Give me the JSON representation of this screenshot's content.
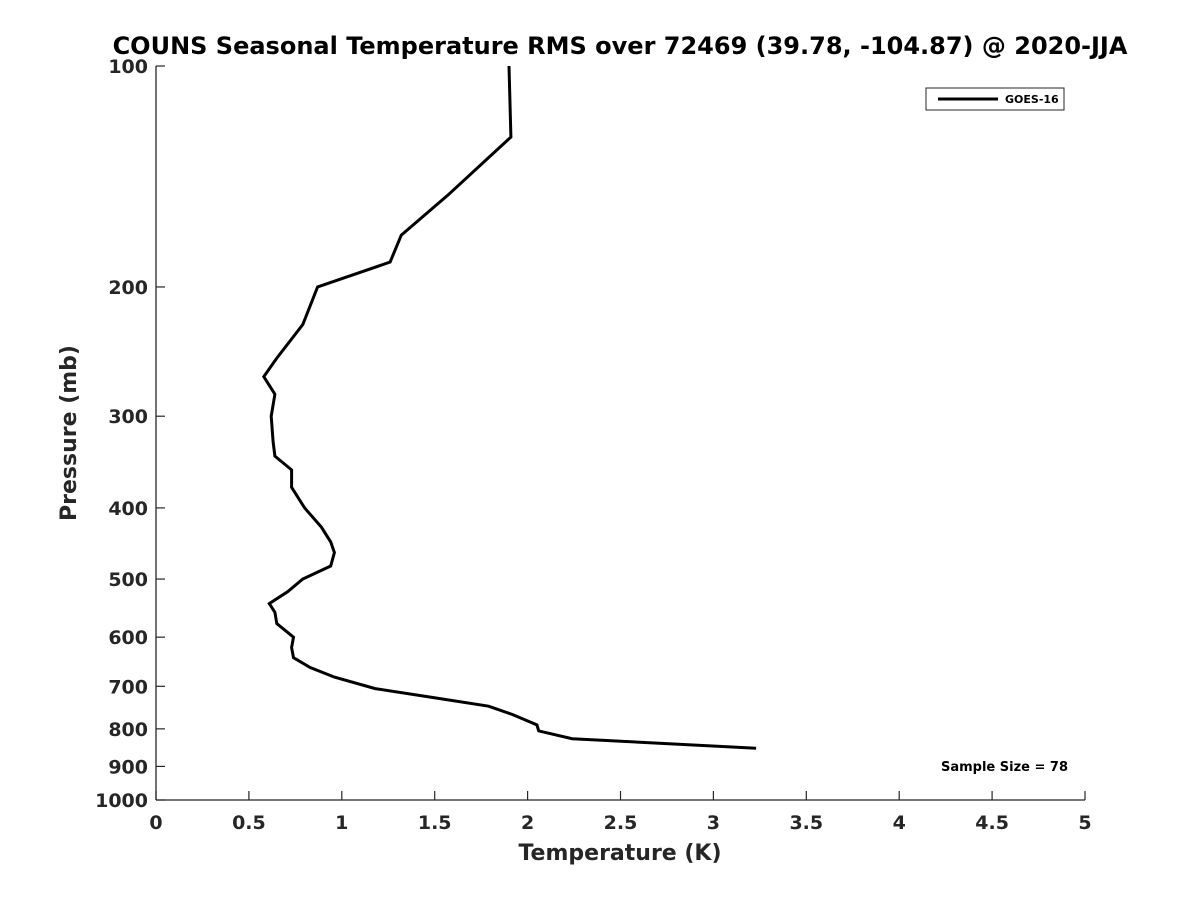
{
  "chart_data": {
    "type": "line",
    "title": "COUNS Seasonal Temperature RMS over 72469 (39.78, -104.87) @ 2020-JJA",
    "xlabel": "Temperature (K)",
    "ylabel": "Pressure (mb)",
    "xlim": [
      0,
      5
    ],
    "ylim": [
      1000,
      100
    ],
    "yscale": "log",
    "xticks": [
      0,
      0.5,
      1,
      1.5,
      2,
      2.5,
      3,
      3.5,
      4,
      4.5,
      5
    ],
    "xtick_labels": [
      "0",
      "0.5",
      "1",
      "1.5",
      "2",
      "2.5",
      "3",
      "3.5",
      "4",
      "4.5",
      "5"
    ],
    "yticks": [
      100,
      200,
      300,
      400,
      500,
      600,
      700,
      800,
      900,
      1000
    ],
    "ytick_labels": [
      "100",
      "200",
      "300",
      "400",
      "500",
      "600",
      "700",
      "800",
      "900",
      "1000"
    ],
    "grid": false,
    "legend_position": "top-right",
    "series": [
      {
        "name": "GOES-16",
        "color": "#000000",
        "points": [
          {
            "x": 1.9,
            "p": 100
          },
          {
            "x": 1.91,
            "p": 125
          },
          {
            "x": 1.57,
            "p": 150
          },
          {
            "x": 1.32,
            "p": 170
          },
          {
            "x": 1.26,
            "p": 185
          },
          {
            "x": 0.87,
            "p": 200
          },
          {
            "x": 0.79,
            "p": 225
          },
          {
            "x": 0.65,
            "p": 250
          },
          {
            "x": 0.58,
            "p": 265
          },
          {
            "x": 0.64,
            "p": 280
          },
          {
            "x": 0.62,
            "p": 300
          },
          {
            "x": 0.63,
            "p": 325
          },
          {
            "x": 0.64,
            "p": 340
          },
          {
            "x": 0.73,
            "p": 355
          },
          {
            "x": 0.73,
            "p": 375
          },
          {
            "x": 0.8,
            "p": 400
          },
          {
            "x": 0.89,
            "p": 425
          },
          {
            "x": 0.94,
            "p": 445
          },
          {
            "x": 0.96,
            "p": 460
          },
          {
            "x": 0.94,
            "p": 480
          },
          {
            "x": 0.79,
            "p": 500
          },
          {
            "x": 0.71,
            "p": 520
          },
          {
            "x": 0.61,
            "p": 540
          },
          {
            "x": 0.64,
            "p": 555
          },
          {
            "x": 0.65,
            "p": 575
          },
          {
            "x": 0.74,
            "p": 600
          },
          {
            "x": 0.73,
            "p": 620
          },
          {
            "x": 0.74,
            "p": 640
          },
          {
            "x": 0.83,
            "p": 660
          },
          {
            "x": 0.96,
            "p": 680
          },
          {
            "x": 1.18,
            "p": 705
          },
          {
            "x": 1.49,
            "p": 725
          },
          {
            "x": 1.79,
            "p": 745
          },
          {
            "x": 1.92,
            "p": 765
          },
          {
            "x": 2.05,
            "p": 790
          },
          {
            "x": 2.06,
            "p": 805
          },
          {
            "x": 2.24,
            "p": 825
          },
          {
            "x": 3.23,
            "p": 850
          }
        ]
      }
    ],
    "annotations": [
      "Sample Size = 78"
    ]
  }
}
